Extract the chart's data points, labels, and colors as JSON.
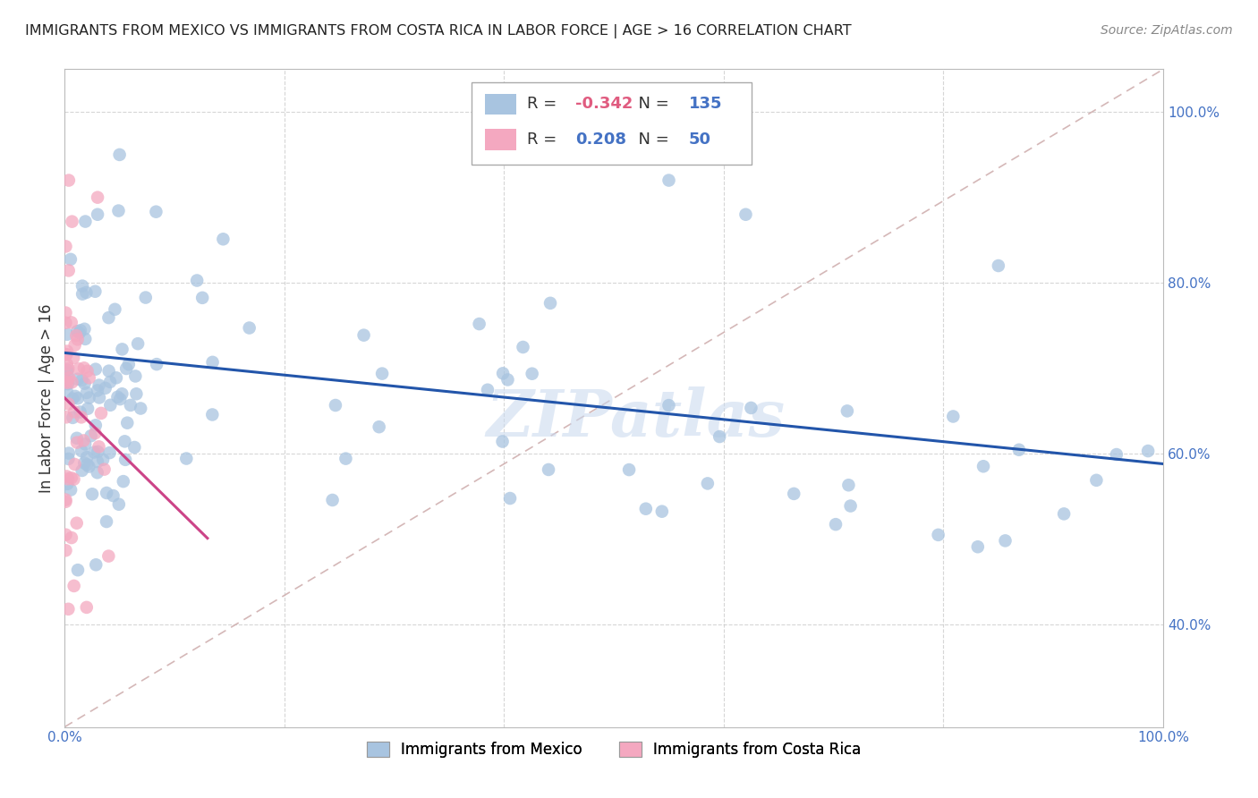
{
  "title": "IMMIGRANTS FROM MEXICO VS IMMIGRANTS FROM COSTA RICA IN LABOR FORCE | AGE > 16 CORRELATION CHART",
  "source": "Source: ZipAtlas.com",
  "ylabel": "In Labor Force | Age > 16",
  "mexico_R": -0.342,
  "mexico_N": 135,
  "costarica_R": 0.208,
  "costarica_N": 50,
  "mexico_color": "#a8c4e0",
  "costarica_color": "#f4a8c0",
  "mexico_line_color": "#2255aa",
  "costarica_line_color": "#cc4488",
  "ref_line_color": "#d0b0b0",
  "background_color": "#ffffff",
  "grid_color": "#cccccc",
  "xlim": [
    0.0,
    1.0
  ],
  "ylim": [
    0.28,
    1.05
  ],
  "yticks": [
    0.4,
    0.6,
    0.8,
    1.0
  ],
  "xticks": [
    0.0,
    1.0
  ],
  "watermark": "ZIPatlas",
  "watermark_color": "#c8d8ee",
  "tick_color": "#4472c4"
}
